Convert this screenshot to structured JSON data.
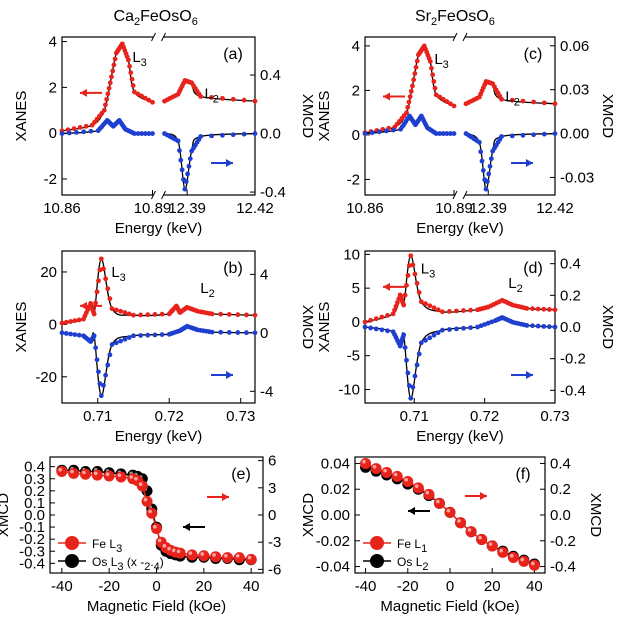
{
  "colors": {
    "red": "#e8231b",
    "blue": "#1f3fd0",
    "black": "#000000",
    "sim": "#000000"
  },
  "column_titles": [
    "Ca2FeOsO6",
    "Sr2FeOsO6"
  ],
  "chart_data": [
    {
      "panel": "(a)",
      "type": "line",
      "title": "Ca2FeOsO6",
      "xlabel": "Energy (keV)",
      "ylabel": "XANES",
      "y2label": "XMCD",
      "broken_x": true,
      "x_segments": [
        [
          10.86,
          10.89
        ],
        [
          12.38,
          12.42
        ]
      ],
      "xticks": [
        "10.86",
        "10.89",
        "12.39",
        "12.42"
      ],
      "ylim": [
        -2.7,
        4.2
      ],
      "yticks": [
        -2,
        0,
        2,
        4
      ],
      "y2lim": [
        -0.42,
        0.66
      ],
      "y2ticks": [
        "-0.4",
        "0.0",
        "0.4"
      ],
      "edges": [
        "L3",
        "L2"
      ],
      "series": [
        {
          "name": "XANES",
          "axis": "left",
          "x": [
            10.86,
            10.87,
            10.874,
            10.876,
            10.878,
            10.88,
            10.882,
            10.884,
            10.89,
            12.38,
            12.386,
            12.389,
            12.392,
            12.396,
            12.42
          ],
          "values": [
            0.1,
            0.35,
            1.0,
            2.2,
            3.5,
            3.9,
            3.2,
            1.8,
            1.35,
            1.4,
            1.7,
            2.3,
            2.2,
            1.6,
            1.4
          ]
        },
        {
          "name": "XMCD",
          "axis": "right",
          "x": [
            10.86,
            10.872,
            10.875,
            10.877,
            10.879,
            10.881,
            10.884,
            10.89,
            12.38,
            12.386,
            12.389,
            12.392,
            12.396,
            12.42
          ],
          "values": [
            0.0,
            0.02,
            0.09,
            0.05,
            0.09,
            0.03,
            0.0,
            0.0,
            0.0,
            -0.05,
            -0.38,
            -0.12,
            -0.02,
            0.0
          ]
        }
      ]
    },
    {
      "panel": "(b)",
      "type": "line",
      "xlabel": "Energy (keV)",
      "ylabel": "XANES",
      "y2label": "XMCD",
      "xlim": [
        0.705,
        0.732
      ],
      "xticks": [
        "0.71",
        "0.72",
        "0.73"
      ],
      "ylim": [
        -30,
        28
      ],
      "yticks": [
        -20,
        0,
        20
      ],
      "y2lim": [
        -4.8,
        5.6
      ],
      "y2ticks": [
        "-4",
        "0",
        "4"
      ],
      "edges": [
        "L3",
        "L2"
      ],
      "series": [
        {
          "name": "XANES",
          "axis": "left",
          "x": [
            0.705,
            0.708,
            0.709,
            0.7095,
            0.7105,
            0.712,
            0.715,
            0.72,
            0.721,
            0.7215,
            0.7225,
            0.724,
            0.726,
            0.732
          ],
          "values": [
            0.5,
            2,
            8,
            4,
            25,
            6,
            3.5,
            4,
            7,
            4.5,
            6.5,
            5,
            4,
            3.5
          ]
        },
        {
          "name": "XMCD",
          "axis": "right",
          "x": [
            0.705,
            0.708,
            0.709,
            0.7095,
            0.7105,
            0.712,
            0.715,
            0.72,
            0.7215,
            0.7225,
            0.724,
            0.726,
            0.732
          ],
          "values": [
            0.0,
            -0.2,
            -0.6,
            -0.2,
            -4.3,
            -0.8,
            -0.2,
            -0.1,
            0.15,
            0.45,
            0.2,
            0.05,
            0.0
          ]
        }
      ]
    },
    {
      "panel": "(c)",
      "type": "line",
      "title": "Sr2FeOsO6",
      "xlabel": "Energy (keV)",
      "ylabel": "XANES",
      "y2label": "XMCD",
      "broken_x": true,
      "x_segments": [
        [
          10.86,
          10.89
        ],
        [
          12.38,
          12.42
        ]
      ],
      "xticks": [
        "10.86",
        "10.89",
        "12.39",
        "12.42"
      ],
      "ylim": [
        -2.7,
        4.4
      ],
      "yticks": [
        -2,
        0,
        2,
        4
      ],
      "y2lim": [
        -0.042,
        0.066
      ],
      "y2ticks": [
        "-0.03",
        "0.00",
        "0.03",
        "0.06"
      ],
      "edges": [
        "L3",
        "L2"
      ],
      "series": [
        {
          "name": "XANES",
          "axis": "left",
          "x": [
            10.86,
            10.87,
            10.874,
            10.876,
            10.878,
            10.88,
            10.882,
            10.884,
            10.89,
            12.38,
            12.386,
            12.389,
            12.392,
            12.396,
            12.42
          ],
          "values": [
            0.1,
            0.35,
            1.0,
            2.2,
            3.6,
            4.0,
            3.3,
            1.8,
            1.3,
            1.4,
            1.7,
            2.4,
            2.3,
            1.6,
            1.4
          ]
        },
        {
          "name": "XMCD",
          "axis": "right",
          "x": [
            10.86,
            10.872,
            10.875,
            10.877,
            10.879,
            10.881,
            10.884,
            10.89,
            12.38,
            12.386,
            12.389,
            12.392,
            12.396,
            12.42
          ],
          "values": [
            0.0,
            0.003,
            0.012,
            0.006,
            0.012,
            0.004,
            0.0,
            0.0,
            0.0,
            -0.006,
            -0.038,
            -0.012,
            -0.002,
            0.0
          ]
        }
      ]
    },
    {
      "panel": "(d)",
      "type": "line",
      "xlabel": "Energy (keV)",
      "ylabel": "XANES",
      "y2label": "XMCD",
      "xlim": [
        0.703,
        0.73
      ],
      "xticks": [
        "0.71",
        "0.72",
        "0.73"
      ],
      "ylim": [
        -12,
        10.5
      ],
      "yticks": [
        -10,
        -5,
        0,
        5,
        10
      ],
      "y2lim": [
        -0.48,
        0.48
      ],
      "y2ticks": [
        "-0.4",
        "-0.2",
        "0.0",
        "0.2",
        "0.4"
      ],
      "edges": [
        "L3",
        "L2"
      ],
      "series": [
        {
          "name": "XANES",
          "axis": "left",
          "x": [
            0.703,
            0.707,
            0.708,
            0.7085,
            0.7095,
            0.711,
            0.714,
            0.719,
            0.7205,
            0.7225,
            0.724,
            0.726,
            0.73
          ],
          "values": [
            0.0,
            1.2,
            4.0,
            2.5,
            9.8,
            3.0,
            1.5,
            1.8,
            2.2,
            3.2,
            2.5,
            2.0,
            1.8
          ]
        },
        {
          "name": "XMCD",
          "axis": "right",
          "x": [
            0.703,
            0.707,
            0.708,
            0.7085,
            0.7095,
            0.711,
            0.714,
            0.719,
            0.7215,
            0.7225,
            0.724,
            0.726,
            0.73
          ],
          "values": [
            0.0,
            -0.03,
            -0.12,
            -0.05,
            -0.45,
            -0.1,
            -0.02,
            0.0,
            0.04,
            0.06,
            0.03,
            0.01,
            0.0
          ]
        }
      ]
    },
    {
      "panel": "(e)",
      "type": "scatter",
      "xlabel": "Magnetic Field (kOe)",
      "ylabel": "XMCD",
      "xlim": [
        -45,
        45
      ],
      "xticks": [
        -40,
        -20,
        0,
        20,
        40
      ],
      "ylim": [
        -0.48,
        0.48
      ],
      "yticks": [
        "-0.4",
        "-0.3",
        "-0.2",
        "-0.1",
        "0.0",
        "0.1",
        "0.2",
        "0.3",
        "0.4"
      ],
      "y2lim": [
        -6.4,
        6.4
      ],
      "y2ticks": [
        "-6",
        "-3",
        "0",
        "3",
        "6"
      ],
      "series": [
        {
          "name": "Fe L3",
          "axis": "right",
          "x": [
            -40,
            -35,
            -30,
            -25,
            -20,
            -15,
            -10,
            -8,
            -6,
            -4,
            -2,
            0,
            2,
            4,
            6,
            8,
            10,
            15,
            20,
            25,
            30,
            35,
            40
          ],
          "values": [
            4.8,
            4.6,
            4.5,
            4.4,
            4.3,
            4.2,
            4.0,
            3.8,
            3.2,
            1.5,
            0.2,
            -1.5,
            -3.0,
            -3.6,
            -3.9,
            -4.1,
            -4.2,
            -4.4,
            -4.5,
            -4.6,
            -4.7,
            -4.7,
            -4.9
          ]
        },
        {
          "name": "Os L3 (x -2.4)",
          "axis": "left",
          "x": [
            -40,
            -35,
            -30,
            -25,
            -20,
            -15,
            -10,
            -8,
            -6,
            -4,
            -2,
            0,
            2,
            4,
            6,
            8,
            10,
            15,
            20,
            25,
            30,
            35,
            40
          ],
          "values": [
            0.37,
            0.37,
            0.36,
            0.36,
            0.35,
            0.34,
            0.33,
            0.32,
            0.3,
            0.2,
            0.05,
            -0.1,
            -0.25,
            -0.3,
            -0.32,
            -0.33,
            -0.34,
            -0.35,
            -0.35,
            -0.36,
            -0.36,
            -0.37,
            -0.37
          ]
        }
      ],
      "legend": [
        "Fe L3",
        "Os L3 (x -2.4)"
      ]
    },
    {
      "panel": "(f)",
      "type": "scatter",
      "xlabel": "Magnetic Field (kOe)",
      "ylabel": "XMCD",
      "y2label": "XMCD",
      "xlim": [
        -45,
        45
      ],
      "xticks": [
        -40,
        -20,
        0,
        20,
        40
      ],
      "ylim": [
        -0.045,
        0.045
      ],
      "yticks": [
        "-0.04",
        "-0.02",
        "0.00",
        "0.02",
        "0.04"
      ],
      "y2lim": [
        -0.45,
        0.45
      ],
      "y2ticks": [
        "-0.4",
        "-0.2",
        "0.0",
        "0.2",
        "0.4"
      ],
      "series": [
        {
          "name": "Fe L1",
          "axis": "right",
          "x": [
            -40,
            -35,
            -30,
            -25,
            -20,
            -15,
            -10,
            -5,
            0,
            5,
            10,
            15,
            20,
            25,
            30,
            35,
            40
          ],
          "values": [
            0.4,
            0.36,
            0.33,
            0.3,
            0.26,
            0.21,
            0.16,
            0.09,
            0.02,
            -0.06,
            -0.13,
            -0.19,
            -0.24,
            -0.29,
            -0.33,
            -0.36,
            -0.39
          ]
        },
        {
          "name": "Os L2",
          "axis": "left",
          "x": [
            -40,
            -35,
            -30,
            -25,
            -20,
            -15,
            -10,
            -5,
            0,
            5,
            10,
            15,
            20,
            25,
            30,
            35,
            40
          ],
          "values": [
            0.037,
            0.034,
            0.031,
            0.028,
            0.024,
            0.02,
            0.015,
            0.009,
            0.002,
            -0.006,
            -0.013,
            -0.019,
            -0.024,
            -0.028,
            -0.032,
            -0.035,
            -0.038
          ]
        }
      ],
      "legend": [
        "Fe L1",
        "Os L2"
      ]
    }
  ]
}
